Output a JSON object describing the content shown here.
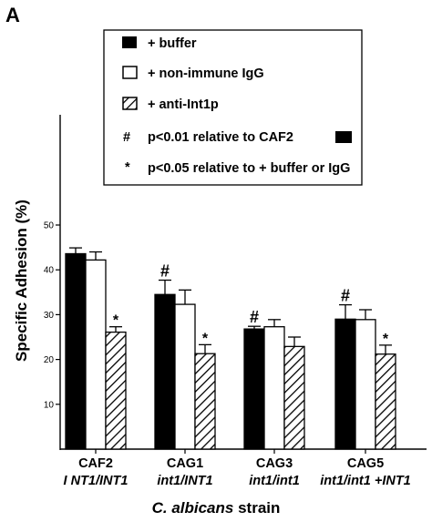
{
  "panel_label": "A",
  "legend": {
    "entries": [
      {
        "label": "+ buffer",
        "symbol": "filled-box"
      },
      {
        "label": "+ non-immune IgG",
        "symbol": "open-box"
      },
      {
        "label": "+ anti-Int1p",
        "symbol": "hatched-box"
      },
      {
        "symbol_text": "#",
        "label": "p<0.01 relative  to CAF2",
        "trailing_symbol": "filled-box"
      },
      {
        "symbol_text": "*",
        "label": "p<0.05 relative to + buffer or IgG"
      }
    ]
  },
  "chart_data": {
    "type": "bar",
    "ylabel": "Specific Adhesion (%)",
    "xlabel_italic": "C. albicans",
    "xlabel_rest": " strain",
    "ylim": [
      0,
      50
    ],
    "yticks": [
      10,
      20,
      30,
      40,
      50
    ],
    "ytick_labels": [
      "10",
      "20",
      "30",
      "40",
      "50"
    ],
    "categories": [
      {
        "name": "CAF2",
        "genotype": "I NT1/INT1"
      },
      {
        "name": "CAG1",
        "genotype": "int1/INT1"
      },
      {
        "name": "CAG3",
        "genotype": "int1/int1"
      },
      {
        "name": "CAG5",
        "genotype": "int1/int1 +INT1"
      }
    ],
    "series": [
      {
        "name": "+ buffer",
        "fill": "solid",
        "values": [
          43.6,
          34.5,
          26.8,
          29.0
        ],
        "errors": [
          1.3,
          3.2,
          0.6,
          3.2
        ]
      },
      {
        "name": "+ non-immune IgG",
        "fill": "open",
        "values": [
          42.2,
          32.3,
          27.3,
          28.9
        ],
        "errors": [
          1.8,
          3.2,
          1.6,
          2.2
        ]
      },
      {
        "name": "+ anti-Int1p",
        "fill": "hatched",
        "values": [
          26.1,
          21.3,
          22.9,
          21.2
        ],
        "errors": [
          1.2,
          2.0,
          2.1,
          2.0
        ]
      }
    ],
    "annotations": [
      {
        "category": 0,
        "series": 2,
        "symbol": "*"
      },
      {
        "category": 1,
        "series": 0,
        "symbol": "#"
      },
      {
        "category": 1,
        "series": 2,
        "symbol": "*"
      },
      {
        "category": 2,
        "series": 0,
        "symbol": "#"
      },
      {
        "category": 3,
        "series": 0,
        "symbol": "#"
      },
      {
        "category": 3,
        "series": 2,
        "symbol": "*"
      }
    ],
    "colors": {
      "ink": "#000000",
      "paper": "#ffffff"
    }
  }
}
